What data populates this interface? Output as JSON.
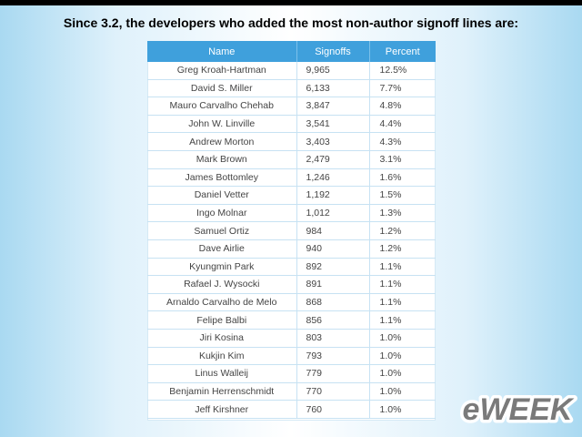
{
  "title": "Since 3.2, the developers who added the most non-author signoff lines are:",
  "table": {
    "headers": [
      "Name",
      "Signoffs",
      "Percent"
    ],
    "rows": [
      {
        "name": "Greg Kroah-Hartman",
        "signoffs": "9,965",
        "percent": "12.5%"
      },
      {
        "name": "David S. Miller",
        "signoffs": "6,133",
        "percent": "7.7%"
      },
      {
        "name": "Mauro Carvalho Chehab",
        "signoffs": "3,847",
        "percent": "4.8%"
      },
      {
        "name": "John W. Linville",
        "signoffs": "3,541",
        "percent": "4.4%"
      },
      {
        "name": "Andrew Morton",
        "signoffs": "3,403",
        "percent": "4.3%"
      },
      {
        "name": "Mark Brown",
        "signoffs": "2,479",
        "percent": "3.1%"
      },
      {
        "name": "James Bottomley",
        "signoffs": "1,246",
        "percent": "1.6%"
      },
      {
        "name": "Daniel Vetter",
        "signoffs": "1,192",
        "percent": "1.5%"
      },
      {
        "name": "Ingo Molnar",
        "signoffs": "1,012",
        "percent": "1.3%"
      },
      {
        "name": "Samuel Ortiz",
        "signoffs": "984",
        "percent": "1.2%"
      },
      {
        "name": "Dave Airlie",
        "signoffs": "940",
        "percent": "1.2%"
      },
      {
        "name": "Kyungmin Park",
        "signoffs": "892",
        "percent": "1.1%"
      },
      {
        "name": "Rafael J. Wysocki",
        "signoffs": "891",
        "percent": "1.1%"
      },
      {
        "name": "Arnaldo Carvalho de Melo",
        "signoffs": "868",
        "percent": "1.1%"
      },
      {
        "name": "Felipe Balbi",
        "signoffs": "856",
        "percent": "1.1%"
      },
      {
        "name": "Jiri Kosina",
        "signoffs": "803",
        "percent": "1.0%"
      },
      {
        "name": "Kukjin Kim",
        "signoffs": "793",
        "percent": "1.0%"
      },
      {
        "name": "Linus Walleij",
        "signoffs": "779",
        "percent": "1.0%"
      },
      {
        "name": "Benjamin Herrenschmidt",
        "signoffs": "770",
        "percent": "1.0%"
      },
      {
        "name": "Jeff Kirshner",
        "signoffs": "760",
        "percent": "1.0%"
      }
    ]
  },
  "logo": {
    "text": "eWEEK"
  },
  "colors": {
    "header_bg": "#3fa0dc",
    "grid_line": "#c7e2f3",
    "logo_fill": "#7a7a7a"
  }
}
